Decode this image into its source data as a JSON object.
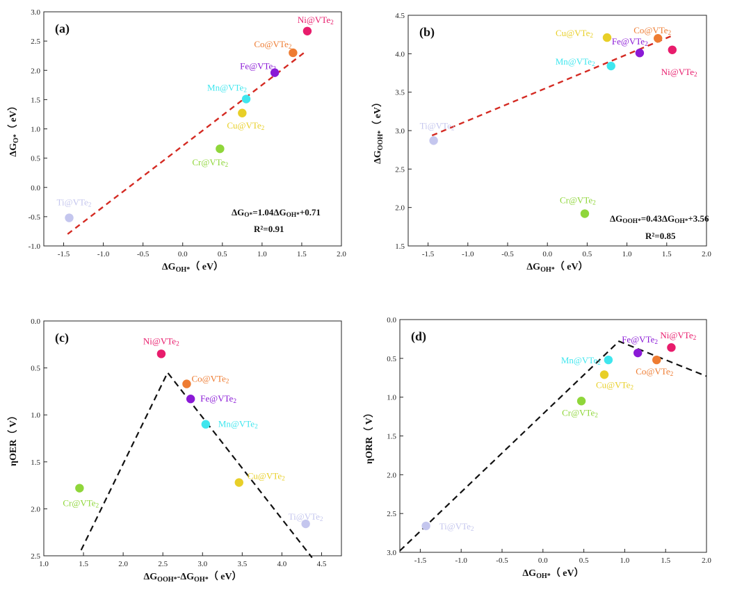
{
  "colors": {
    "Ti": "#c4c6ee",
    "Cr": "#8fd63a",
    "Mn": "#3fe6ee",
    "Fe": "#8a19d6",
    "Co": "#ee7c32",
    "Ni": "#e81c6c",
    "Cu": "#e8cf28",
    "fit": "#d42a22",
    "volcano": "#111111"
  },
  "chart_data": [
    {
      "id": "a",
      "type": "scatter",
      "panel_label": "(a)",
      "xlabel_parts": [
        "ΔG",
        "OH*",
        "（ eV）"
      ],
      "ylabel_parts": [
        "ΔG",
        "O*",
        "（ eV）"
      ],
      "xlim": [
        -1.75,
        2.0
      ],
      "ylim": [
        -1.0,
        3.0
      ],
      "y_inverted": false,
      "xticks": [
        -1.5,
        -1.0,
        -0.5,
        0.0,
        0.5,
        1.0,
        1.5,
        2.0
      ],
      "yticks": [
        -1.0,
        -0.5,
        0.0,
        0.5,
        1.0,
        1.5,
        2.0,
        2.5,
        3.0
      ],
      "points": [
        {
          "m": "Ti",
          "x": -1.43,
          "y": -0.52
        },
        {
          "m": "Cr",
          "x": 0.47,
          "y": 0.66
        },
        {
          "m": "Mn",
          "x": 0.8,
          "y": 1.51
        },
        {
          "m": "Cu",
          "x": 0.75,
          "y": 1.27
        },
        {
          "m": "Fe",
          "x": 1.16,
          "y": 1.96
        },
        {
          "m": "Co",
          "x": 1.39,
          "y": 2.3
        },
        {
          "m": "Ni",
          "x": 1.57,
          "y": 2.67
        }
      ],
      "fit": {
        "slope": 1.04,
        "intercept": 0.71,
        "x_range": [
          -1.45,
          1.55
        ]
      },
      "annotations": [
        "ΔG_O*=1.04ΔG_OH*+0.71",
        "R²=0.91"
      ]
    },
    {
      "id": "b",
      "type": "scatter",
      "panel_label": "(b)",
      "xlabel_parts": [
        "ΔG",
        "OH*",
        "（ eV）"
      ],
      "ylabel_parts": [
        "ΔG",
        "OOH*",
        "（ eV）"
      ],
      "xlim": [
        -1.75,
        2.0
      ],
      "ylim": [
        1.5,
        4.5
      ],
      "y_inverted": false,
      "xticks": [
        -1.5,
        -1.0,
        -0.5,
        0.0,
        0.5,
        1.0,
        1.5,
        2.0
      ],
      "yticks": [
        1.5,
        2.0,
        2.5,
        3.0,
        3.5,
        4.0,
        4.5
      ],
      "points": [
        {
          "m": "Ti",
          "x": -1.43,
          "y": 2.87
        },
        {
          "m": "Cr",
          "x": 0.47,
          "y": 1.92
        },
        {
          "m": "Mn",
          "x": 0.8,
          "y": 3.84
        },
        {
          "m": "Cu",
          "x": 0.75,
          "y": 4.21
        },
        {
          "m": "Fe",
          "x": 1.16,
          "y": 4.01
        },
        {
          "m": "Co",
          "x": 1.39,
          "y": 4.2
        },
        {
          "m": "Ni",
          "x": 1.57,
          "y": 4.05
        }
      ],
      "fit": {
        "slope": 0.43,
        "intercept": 3.56,
        "x_range": [
          -1.45,
          1.55
        ]
      },
      "annotations": [
        "ΔG_OOH*=0.43ΔG_OH*+3.56",
        "R²=0.85"
      ]
    },
    {
      "id": "c",
      "type": "scatter",
      "panel_label": "(c)",
      "xlabel_parts": [
        "ΔG",
        "OOH*",
        "-ΔG",
        "OH*",
        "（ eV）"
      ],
      "ylabel_parts": [
        "ηOER（ V）"
      ],
      "xlim": [
        1.0,
        4.75
      ],
      "ylim": [
        0.0,
        2.5
      ],
      "y_inverted": true,
      "xticks": [
        1.0,
        1.5,
        2.0,
        2.5,
        3.0,
        3.5,
        4.0,
        4.5
      ],
      "yticks": [
        0.0,
        0.5,
        1.0,
        1.5,
        2.0,
        2.5
      ],
      "points": [
        {
          "m": "Cr",
          "x": 1.45,
          "y": 1.78
        },
        {
          "m": "Ni",
          "x": 2.48,
          "y": 0.35
        },
        {
          "m": "Co",
          "x": 2.8,
          "y": 0.67
        },
        {
          "m": "Fe",
          "x": 2.85,
          "y": 0.83
        },
        {
          "m": "Mn",
          "x": 3.04,
          "y": 1.1
        },
        {
          "m": "Cu",
          "x": 3.46,
          "y": 1.72
        },
        {
          "m": "Ti",
          "x": 4.3,
          "y": 2.16
        }
      ],
      "volcano": [
        [
          1.47,
          2.44
        ],
        [
          2.56,
          0.55
        ],
        [
          4.38,
          2.52
        ]
      ]
    },
    {
      "id": "d",
      "type": "scatter",
      "panel_label": "(d)",
      "xlabel_parts": [
        "ΔG",
        "OH*",
        "（ eV）"
      ],
      "ylabel_parts": [
        "ηORR（ V）"
      ],
      "xlim": [
        -1.75,
        2.0
      ],
      "ylim": [
        0.0,
        3.0
      ],
      "y_inverted": true,
      "xticks": [
        -1.5,
        -1.0,
        -0.5,
        0.0,
        0.5,
        1.0,
        1.5,
        2.0
      ],
      "yticks": [
        0.0,
        0.5,
        1.0,
        1.5,
        2.0,
        2.5,
        3.0
      ],
      "points": [
        {
          "m": "Ti",
          "x": -1.43,
          "y": 2.66
        },
        {
          "m": "Cr",
          "x": 0.47,
          "y": 1.05
        },
        {
          "m": "Mn",
          "x": 0.8,
          "y": 0.52
        },
        {
          "m": "Cu",
          "x": 0.75,
          "y": 0.71
        },
        {
          "m": "Fe",
          "x": 1.16,
          "y": 0.43
        },
        {
          "m": "Co",
          "x": 1.39,
          "y": 0.52
        },
        {
          "m": "Ni",
          "x": 1.57,
          "y": 0.36
        }
      ],
      "volcano": [
        [
          -1.75,
          2.98
        ],
        [
          0.93,
          0.28
        ],
        [
          2.0,
          0.73
        ]
      ]
    }
  ],
  "labels": {
    "Ti": "Ti@VTe",
    "Cr": "Cr@VTe",
    "Mn": "Mn@VTe",
    "Fe": "Fe@VTe",
    "Co": "Co@VTe",
    "Ni": "Ni@VTe",
    "Cu": "Cu@VTe",
    "subscript": "2"
  }
}
